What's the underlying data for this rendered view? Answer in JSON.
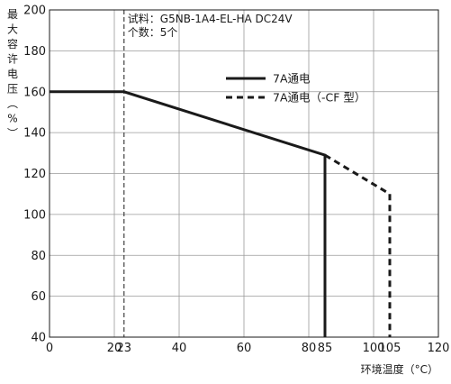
{
  "chart_data": {
    "type": "line",
    "xlabel": "环境温度（°C）",
    "ylabel": "最大容许电压（%）",
    "xlim": [
      0,
      120
    ],
    "ylim": [
      40,
      200
    ],
    "x_ticks": [
      0,
      20,
      23,
      40,
      60,
      80,
      85,
      100,
      105,
      120
    ],
    "x_tick_labels": [
      "0",
      "20",
      "23",
      "40",
      "60",
      "80",
      "85",
      "100",
      "105",
      "120"
    ],
    "y_ticks": [
      40,
      60,
      80,
      100,
      120,
      140,
      160,
      180,
      200
    ],
    "y_tick_labels": [
      "40",
      "60",
      "80",
      "100",
      "120",
      "140",
      "160",
      "180",
      "200"
    ],
    "grid": true,
    "reference_line_x": 23,
    "annotations": [
      "试料：G5NB-1A4-EL-HA  DC24V",
      "个数：5个"
    ],
    "legend_position": "top-right",
    "series": [
      {
        "name": "7A通电",
        "style": "solid",
        "color": "#1a1a1a",
        "points": [
          [
            0,
            160
          ],
          [
            23,
            160
          ],
          [
            85,
            129
          ],
          [
            85,
            40
          ]
        ]
      },
      {
        "name": "7A通电（-CF 型）",
        "style": "dashed",
        "color": "#1a1a1a",
        "points": [
          [
            85,
            129
          ],
          [
            105,
            110
          ],
          [
            105,
            40
          ]
        ]
      }
    ]
  }
}
